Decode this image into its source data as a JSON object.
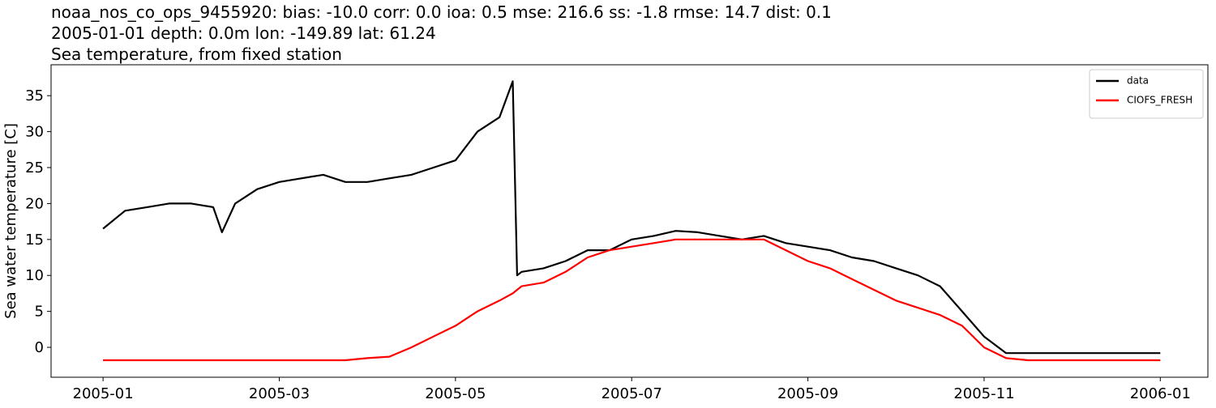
{
  "chart_data": {
    "type": "line",
    "title": "noaa_nos_co_ops_9455920: bias: -10.0  corr: 0.0  ioa: 0.5  mse: 216.6  ss: -1.8  rmse: 14.7  dist: 0.1",
    "subtitle": "2005-01-01 depth: 0.0m lon: -149.89 lat: 61.24",
    "subtitle2": "Sea temperature, from fixed station",
    "ylabel": "Sea water temperature [C]",
    "x": [
      0,
      0.25,
      0.5,
      0.75,
      1,
      1.25,
      1.35,
      1.5,
      1.75,
      2,
      2.25,
      2.5,
      2.75,
      3,
      3.25,
      3.5,
      3.75,
      4,
      4.25,
      4.5,
      4.65,
      4.7,
      4.75,
      5,
      5.25,
      5.5,
      5.75,
      6,
      6.25,
      6.5,
      6.75,
      7,
      7.25,
      7.5,
      7.75,
      8,
      8.25,
      8.5,
      8.75,
      9,
      9.25,
      9.5,
      9.75,
      10,
      10.25,
      10.5,
      10.75,
      11,
      11.25,
      11.5,
      11.75,
      12
    ],
    "series": [
      {
        "name": "data",
        "color": "#000000",
        "values": [
          16.5,
          19,
          19.5,
          20,
          20,
          19.5,
          16,
          20,
          22,
          23,
          23.5,
          24,
          23,
          23,
          23.5,
          24,
          25,
          26,
          30,
          32,
          37,
          10,
          10.5,
          11,
          12,
          13.5,
          13.5,
          15,
          15.5,
          16.2,
          16,
          15.5,
          15,
          15.5,
          14.5,
          14,
          13.5,
          12.5,
          12,
          11,
          10,
          8.5,
          5,
          1.5,
          -0.8,
          -0.8,
          -0.8,
          -0.8,
          -0.8,
          -0.8,
          -0.8,
          -0.8
        ]
      },
      {
        "name": "CIOFS_FRESH",
        "color": "#ff0000",
        "values": [
          -1.8,
          -1.8,
          -1.8,
          -1.8,
          -1.8,
          -1.8,
          -1.8,
          -1.8,
          -1.8,
          -1.8,
          -1.8,
          -1.8,
          -1.8,
          -1.5,
          -1.3,
          0,
          1.5,
          3,
          5,
          6.5,
          7.5,
          8,
          8.5,
          9,
          10.5,
          12.5,
          13.5,
          14,
          14.5,
          15,
          15,
          15,
          15,
          15,
          13.5,
          12,
          11,
          9.5,
          8,
          6.5,
          5.5,
          4.5,
          3,
          0,
          -1.5,
          -1.8,
          -1.8,
          -1.8,
          -1.8,
          -1.8,
          -1.8,
          -1.8
        ]
      }
    ],
    "xlim": [
      -0.59,
      12.54
    ],
    "xticks": [
      {
        "value": 0,
        "label": "2005-01"
      },
      {
        "value": 2,
        "label": "2005-03"
      },
      {
        "value": 4,
        "label": "2005-05"
      },
      {
        "value": 6,
        "label": "2005-07"
      },
      {
        "value": 8,
        "label": "2005-09"
      },
      {
        "value": 10,
        "label": "2005-11"
      },
      {
        "value": 12,
        "label": "2006-01"
      }
    ],
    "ylim": [
      -4.16,
      39.3
    ],
    "yticks": [
      0,
      5,
      10,
      15,
      20,
      25,
      30,
      35
    ],
    "legend": "upper right"
  }
}
